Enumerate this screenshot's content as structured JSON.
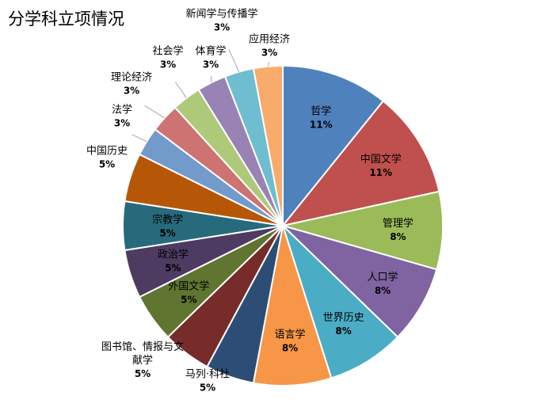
{
  "chart_data": {
    "type": "pie",
    "title": "分学科立项情况",
    "legend": "none",
    "slices": [
      {
        "label": "哲学",
        "label_lines": [
          "哲学"
        ],
        "percent_text": "11%",
        "value": 11,
        "color": "#4F81BD",
        "label_pos": "inside"
      },
      {
        "label": "中国文学",
        "label_lines": [
          "中国文学"
        ],
        "percent_text": "11%",
        "value": 11,
        "color": "#C0504D",
        "label_pos": "inside"
      },
      {
        "label": "管理学",
        "label_lines": [
          "管理学"
        ],
        "percent_text": "8%",
        "value": 8,
        "color": "#9BBB59",
        "label_pos": "inside"
      },
      {
        "label": "人口学",
        "label_lines": [
          "人口学"
        ],
        "percent_text": "8%",
        "value": 8,
        "color": "#8064A2",
        "label_pos": "inside"
      },
      {
        "label": "世界历史",
        "label_lines": [
          "世界历史"
        ],
        "percent_text": "8%",
        "value": 8,
        "color": "#4BACC6",
        "label_pos": "inside"
      },
      {
        "label": "语言学",
        "label_lines": [
          "语言学"
        ],
        "percent_text": "8%",
        "value": 8,
        "color": "#F79646",
        "label_pos": "inside"
      },
      {
        "label": "马列·科社",
        "label_lines": [
          "马列·科社"
        ],
        "percent_text": "5%",
        "value": 5,
        "color": "#2C4D75",
        "label_pos": "outside"
      },
      {
        "label": "图书馆、情报与文献学",
        "label_lines": [
          "图书馆、情报与文",
          "献学"
        ],
        "percent_text": "5%",
        "value": 5,
        "color": "#772C2A",
        "label_pos": "outside"
      },
      {
        "label": "外国文学",
        "label_lines": [
          "外国文学"
        ],
        "percent_text": "5%",
        "value": 5,
        "color": "#5F7530",
        "label_pos": "inside"
      },
      {
        "label": "政治学",
        "label_lines": [
          "政治学"
        ],
        "percent_text": "5%",
        "value": 5,
        "color": "#4D3B62",
        "label_pos": "inside"
      },
      {
        "label": "宗教学",
        "label_lines": [
          "宗教学"
        ],
        "percent_text": "5%",
        "value": 5,
        "color": "#276A7C",
        "label_pos": "inside"
      },
      {
        "label": "中国历史",
        "label_lines": [
          "中国历史"
        ],
        "percent_text": "5%",
        "value": 5,
        "color": "#B65708",
        "label_pos": "outside"
      },
      {
        "label": "法学",
        "label_lines": [
          "法学"
        ],
        "percent_text": "3%",
        "value": 3,
        "color": "#729ACA",
        "label_pos": "outside"
      },
      {
        "label": "理论经济",
        "label_lines": [
          "理论经济"
        ],
        "percent_text": "3%",
        "value": 3,
        "color": "#CD7371",
        "label_pos": "outside"
      },
      {
        "label": "社会学",
        "label_lines": [
          "社会学"
        ],
        "percent_text": "3%",
        "value": 3,
        "color": "#AFC97A",
        "label_pos": "outside"
      },
      {
        "label": "体育学",
        "label_lines": [
          "体育学"
        ],
        "percent_text": "3%",
        "value": 3,
        "color": "#9983B5",
        "label_pos": "outside"
      },
      {
        "label": "新闻学与传播学",
        "label_lines": [
          "新闻学与传播学"
        ],
        "percent_text": "3%",
        "value": 3,
        "color": "#6FBDD1",
        "label_pos": "outside"
      },
      {
        "label": "应用经济",
        "label_lines": [
          "应用经济"
        ],
        "percent_text": "3%",
        "value": 3,
        "color": "#F9AB6B",
        "label_pos": "outside"
      }
    ]
  }
}
